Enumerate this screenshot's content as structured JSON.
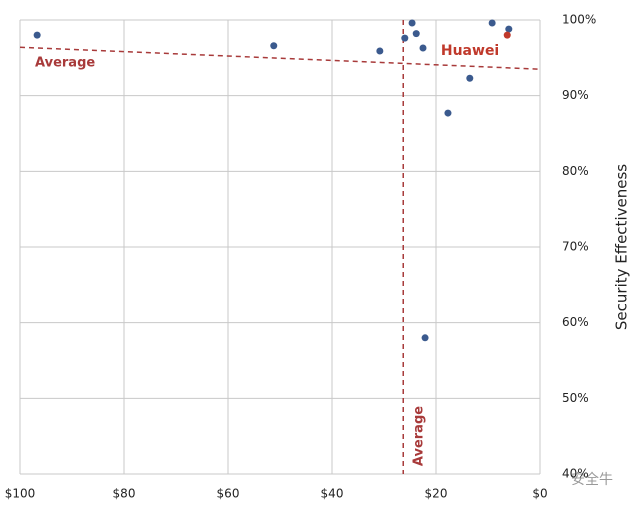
{
  "chart_data": {
    "type": "scatter",
    "y_label": "Security Effectiveness",
    "xlim": [
      100,
      0
    ],
    "xticks": [
      {
        "value": 100,
        "label": "$100"
      },
      {
        "value": 80,
        "label": "$80"
      },
      {
        "value": 60,
        "label": "$60"
      },
      {
        "value": 40,
        "label": "$40"
      },
      {
        "value": 20,
        "label": "$20"
      },
      {
        "value": 0,
        "label": "$0"
      }
    ],
    "ylim": [
      40,
      100
    ],
    "yticks": [
      {
        "value": 40,
        "label": "40%"
      },
      {
        "value": 50,
        "label": "50%"
      },
      {
        "value": 60,
        "label": "60%"
      },
      {
        "value": 70,
        "label": "70%"
      },
      {
        "value": 80,
        "label": "80%"
      },
      {
        "value": 90,
        "label": "90%"
      },
      {
        "value": 100,
        "label": "100%"
      }
    ],
    "grid": true,
    "series": [
      {
        "color": "#3b5a8e",
        "x": [
          96.7,
          51.2,
          30.8,
          26.0,
          24.6,
          23.8,
          22.5,
          22.1,
          17.7,
          13.5,
          9.2,
          6.0
        ],
        "values": [
          98.0,
          96.6,
          95.9,
          97.6,
          99.6,
          98.2,
          96.3,
          58.0,
          87.7,
          92.3,
          99.6,
          98.8
        ]
      },
      {
        "name": "Huawei",
        "color": "#c0392b",
        "x": [
          6.3
        ],
        "values": [
          98.0
        ]
      }
    ],
    "reference_lines": [
      {
        "label": "Average",
        "axis": "x",
        "value": 26.3,
        "color": "#a83a3a"
      },
      {
        "label": "Average",
        "axis": "y",
        "values": [
          96.4,
          93.5
        ],
        "color": "#a83a3a"
      }
    ],
    "watermark": "安全牛"
  }
}
